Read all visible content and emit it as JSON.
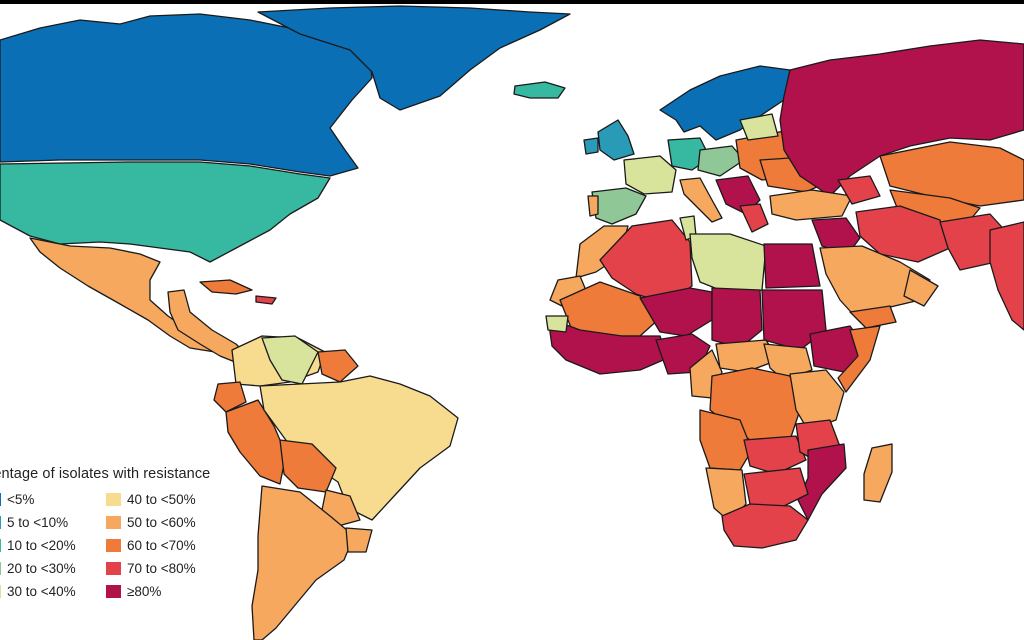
{
  "legend": {
    "title": "centage of isolates with resistance",
    "items": [
      {
        "label": "<5%",
        "color": "#0a6fb5"
      },
      {
        "label": "40 to <50%",
        "color": "#f7dc8f"
      },
      {
        "label": "5 to <10%",
        "color": "#2a9bb7"
      },
      {
        "label": "50 to <60%",
        "color": "#f6a85e"
      },
      {
        "label": "10 to <20%",
        "color": "#37b8a0"
      },
      {
        "label": "60 to <70%",
        "color": "#ee7b3a"
      },
      {
        "label": "20 to <30%",
        "color": "#8fc796"
      },
      {
        "label": "70 to <80%",
        "color": "#e3424b"
      },
      {
        "label": "30 to <40%",
        "color": "#d8e39b"
      },
      {
        "label": "≥80%",
        "color": "#b1124b"
      }
    ]
  },
  "colors": {
    "ocean": "#ffffff",
    "border": "#1a1a1a"
  }
}
